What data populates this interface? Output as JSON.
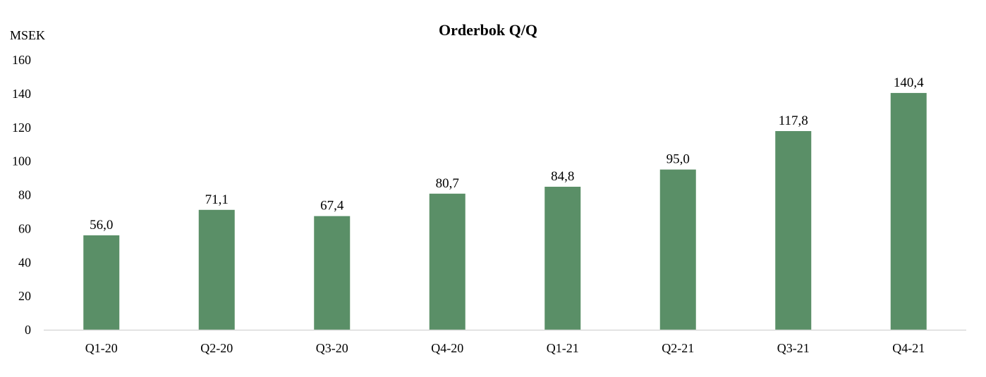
{
  "chart_data": {
    "type": "bar",
    "title": "Orderbok Q/Q",
    "ylabel": "MSEK",
    "xlabel": "",
    "categories": [
      "Q1-20",
      "Q2-20",
      "Q3-20",
      "Q4-20",
      "Q1-21",
      "Q2-21",
      "Q3-21",
      "Q4-21"
    ],
    "values": [
      56.0,
      71.1,
      67.4,
      80.7,
      84.8,
      95.0,
      117.8,
      140.4
    ],
    "data_labels": [
      "56,0",
      "71,1",
      "67,4",
      "80,7",
      "84,8",
      "95,0",
      "117,8",
      "140,4"
    ],
    "ylim": [
      0,
      160
    ],
    "yticks": [
      "0",
      "20",
      "40",
      "60",
      "80",
      "100",
      "120",
      "140",
      "160"
    ],
    "grid": false,
    "legend": "none",
    "colors": {
      "bar": "#5a8f67",
      "axis": "#d9d9d9",
      "text": "#000000"
    }
  }
}
